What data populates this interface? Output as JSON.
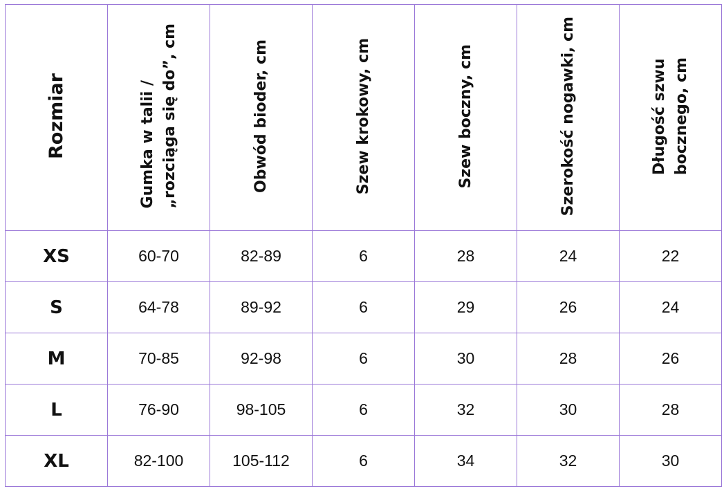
{
  "table": {
    "headers": [
      {
        "lines": [
          "Rozmiar"
        ]
      },
      {
        "lines": [
          "Gumka w talii /",
          "„rozciąga się do”, cm"
        ]
      },
      {
        "lines": [
          "Obwód bioder, cm"
        ]
      },
      {
        "lines": [
          "Szew krokowy, cm"
        ]
      },
      {
        "lines": [
          "Szew boczny, cm"
        ]
      },
      {
        "lines": [
          "Szerokość nogawki, cm"
        ]
      },
      {
        "lines": [
          "Długość szwu",
          "bocznego, cm"
        ]
      }
    ],
    "rows": [
      {
        "size": "XS",
        "values": [
          "60-70",
          "82-89",
          "6",
          "28",
          "24",
          "22"
        ]
      },
      {
        "size": "S",
        "values": [
          "64-78",
          "89-92",
          "6",
          "29",
          "26",
          "24"
        ]
      },
      {
        "size": "M",
        "values": [
          "70-85",
          "92-98",
          "6",
          "30",
          "28",
          "26"
        ]
      },
      {
        "size": "L",
        "values": [
          "76-90",
          "98-105",
          "6",
          "32",
          "30",
          "28"
        ]
      },
      {
        "size": "XL",
        "values": [
          "82-100",
          "105-112",
          "6",
          "34",
          "32",
          "30"
        ]
      }
    ]
  },
  "colors": {
    "border": "#9b78d8",
    "text": "#111111",
    "background": "#ffffff"
  }
}
